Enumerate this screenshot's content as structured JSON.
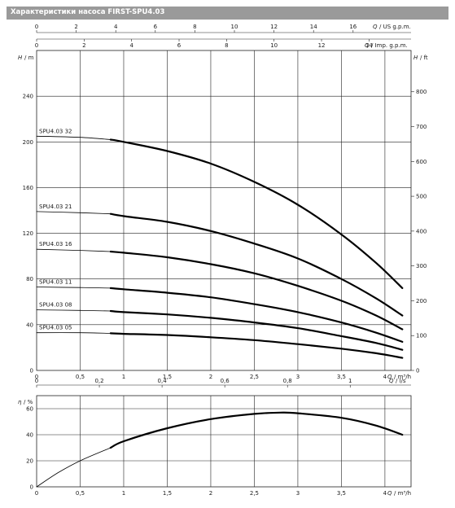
{
  "header": {
    "title": "Характеристики насоса FIRST-SPU4.03"
  },
  "chart_data": [
    {
      "type": "line",
      "axes": {
        "x": {
          "label": "Q",
          "unit": "/ m³/h",
          "range": [
            0,
            4.3
          ],
          "ticks": [
            0,
            0.5,
            1,
            1.5,
            2,
            2.5,
            3,
            3.5,
            4
          ]
        },
        "x_us_gpm": {
          "label": "Q",
          "unit": "/ US g.p.m.",
          "range": [
            0,
            18.93
          ],
          "ticks": [
            0,
            2,
            4,
            6,
            8,
            10,
            12,
            14,
            16
          ]
        },
        "x_imp_gpm": {
          "label": "Q",
          "unit": "/ Imp. g.p.m.",
          "range": [
            0,
            15.77
          ],
          "ticks": [
            0,
            2,
            4,
            6,
            8,
            10,
            12,
            14
          ]
        },
        "x_ls": {
          "label": "Q",
          "unit": "/ l/s",
          "range": [
            0,
            1.194
          ],
          "ticks": [
            0,
            0.2,
            0.4,
            0.6,
            0.8,
            1
          ]
        },
        "y": {
          "label": "H",
          "unit": "/ m",
          "range": [
            0,
            280
          ],
          "ticks": [
            0,
            40,
            80,
            120,
            160,
            200,
            240
          ]
        },
        "y_ft": {
          "label": "H",
          "unit": "/ ft",
          "range": [
            0,
            918.6
          ],
          "ticks": [
            0,
            100,
            200,
            300,
            400,
            500,
            600,
            700,
            800
          ]
        }
      },
      "grid": true,
      "series": [
        {
          "name": "SPU4.03 32",
          "x": [
            0,
            0.5,
            0.85,
            1.0,
            1.5,
            2.0,
            2.5,
            3.0,
            3.5,
            3.9,
            4.2
          ],
          "y": [
            205,
            204,
            202,
            200,
            192,
            181,
            165,
            145,
            119,
            94,
            72
          ]
        },
        {
          "name": "SPU4.03 21",
          "x": [
            0,
            0.5,
            0.85,
            1.0,
            1.5,
            2.0,
            2.5,
            3.0,
            3.5,
            3.9,
            4.2
          ],
          "y": [
            139,
            138,
            137,
            135,
            130,
            122,
            111,
            98,
            80,
            63,
            48
          ]
        },
        {
          "name": "SPU4.03 16",
          "x": [
            0,
            0.5,
            0.85,
            1.0,
            1.5,
            2.0,
            2.5,
            3.0,
            3.5,
            3.9,
            4.2
          ],
          "y": [
            106,
            105,
            104,
            103,
            99,
            93,
            85,
            74,
            61,
            48,
            36
          ]
        },
        {
          "name": "SPU4.03 11",
          "x": [
            0,
            0.5,
            0.85,
            1.0,
            1.5,
            2.0,
            2.5,
            3.0,
            3.5,
            3.9,
            4.2
          ],
          "y": [
            73,
            72.5,
            72,
            71,
            68,
            64,
            58,
            51,
            42,
            33,
            25
          ]
        },
        {
          "name": "SPU4.03 08",
          "x": [
            0,
            0.5,
            0.85,
            1.0,
            1.5,
            2.0,
            2.5,
            3.0,
            3.5,
            3.9,
            4.2
          ],
          "y": [
            53,
            52.5,
            52,
            51,
            49,
            46,
            42,
            37,
            30,
            24,
            18
          ]
        },
        {
          "name": "SPU4.03 05",
          "x": [
            0,
            0.5,
            0.85,
            1.0,
            1.5,
            2.0,
            2.5,
            3.0,
            3.5,
            3.9,
            4.2
          ],
          "y": [
            33,
            33,
            32.5,
            32,
            31,
            29,
            26.5,
            23,
            19,
            15,
            11
          ]
        }
      ],
      "thick_from_x": 0.85
    },
    {
      "type": "line",
      "axes": {
        "x": {
          "label": "Q",
          "unit": "/ m³/h",
          "range": [
            0,
            4.3
          ],
          "ticks": [
            0,
            0.5,
            1,
            1.5,
            2,
            2.5,
            3,
            3.5,
            4
          ]
        },
        "y": {
          "label": "η",
          "unit": "/ %",
          "range": [
            0,
            70
          ],
          "ticks": [
            0,
            20,
            40,
            60
          ]
        }
      },
      "grid": true,
      "series": [
        {
          "x": [
            0,
            0.25,
            0.5,
            0.85,
            1.0,
            1.5,
            2.0,
            2.5,
            2.8,
            3.0,
            3.5,
            3.9,
            4.2
          ],
          "y": [
            0,
            11,
            20,
            30,
            35,
            45,
            52,
            56,
            57,
            56.5,
            53,
            47,
            40
          ]
        }
      ],
      "thick_from_x": 0.85
    }
  ]
}
